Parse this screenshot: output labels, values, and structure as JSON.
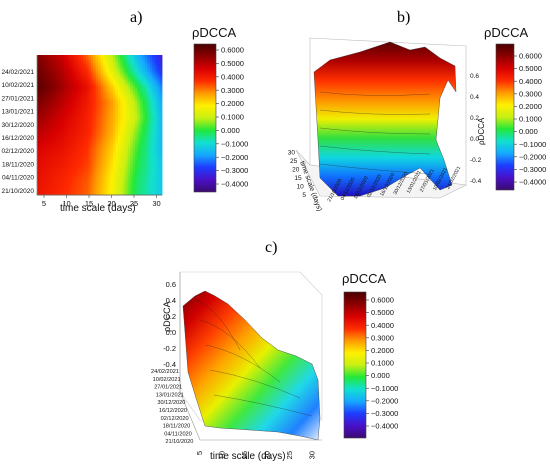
{
  "chart_data": [
    {
      "panel": "a)",
      "type": "heatmap",
      "xlabel": "time scale (days)",
      "x_ticks": [
        "5",
        "10",
        "15",
        "20",
        "25",
        "30"
      ],
      "date_ticks": [
        "24/02/2021",
        "10/02/2021",
        "27/01/2021",
        "13/01/2021",
        "30/12/2020",
        "16/12/2020",
        "02/12/2020",
        "18/11/2020",
        "04/11/2020",
        "21/10/2020"
      ],
      "colorbar_title": "ρDCCA",
      "colorbar_ticks": [
        "0.6000",
        "0.5000",
        "0.4000",
        "0.3000",
        "0.2000",
        "0.1000",
        "0.000",
        "−0.1000",
        "−0.2000",
        "−0.3000",
        "−0.4000"
      ],
      "zlim": [
        -0.45,
        0.65
      ],
      "grid": {
        "x": [
          5,
          10,
          15,
          20,
          25,
          30
        ],
        "dates": [
          "21/10/2020",
          "04/11/2020",
          "18/11/2020",
          "02/12/2020",
          "16/12/2020",
          "30/12/2020",
          "13/01/2021",
          "27/01/2021",
          "10/02/2021",
          "24/02/2021"
        ],
        "values": [
          [
            0.42,
            0.38,
            0.33,
            0.18,
            -0.02,
            -0.12
          ],
          [
            0.43,
            0.39,
            0.34,
            0.19,
            -0.01,
            -0.12
          ],
          [
            0.44,
            0.41,
            0.36,
            0.21,
            0.01,
            -0.12
          ],
          [
            0.46,
            0.43,
            0.37,
            0.23,
            0.03,
            -0.14
          ],
          [
            0.5,
            0.45,
            0.39,
            0.26,
            0.06,
            -0.14
          ],
          [
            0.54,
            0.47,
            0.4,
            0.27,
            0.1,
            -0.14
          ],
          [
            0.58,
            0.5,
            0.41,
            0.28,
            0.08,
            -0.16
          ],
          [
            0.63,
            0.53,
            0.43,
            0.23,
            0.02,
            -0.2
          ],
          [
            0.6,
            0.51,
            0.38,
            0.15,
            -0.08,
            -0.28
          ],
          [
            0.57,
            0.48,
            0.33,
            0.1,
            -0.14,
            -0.32
          ]
        ]
      }
    },
    {
      "panel": "b)",
      "type": "surface3d",
      "xlabel": "time scale (days)",
      "zlabel": "ρDCCA",
      "x_ticks": [
        "5",
        "10",
        "15",
        "20",
        "25",
        "30"
      ],
      "z_ticks": [
        "0.6",
        "0.4",
        "0.2",
        "0.0",
        "-0.2",
        "-0.4"
      ],
      "date_ticks": [
        "21/10/2020",
        "04/11/2020",
        "18/11/2020",
        "02/12/2020",
        "16/12/2020",
        "30/12/2020",
        "13/01/2021",
        "27/01/2021",
        "10/02/2021",
        "24/02/2021"
      ],
      "colorbar_title": "ρDCCA",
      "colorbar_ticks": [
        "0.6000",
        "0.5000",
        "0.4000",
        "0.3000",
        "0.2000",
        "0.1000",
        "0.000",
        "−0.1000",
        "−0.2000",
        "−0.3000",
        "−0.4000"
      ]
    },
    {
      "panel": "c)",
      "type": "surface3d",
      "xlabel": "time scale (days)",
      "zlabel": "ρDCCA",
      "x_ticks": [
        "5",
        "10",
        "15",
        "20",
        "25",
        "30"
      ],
      "z_ticks": [
        "0.6",
        "0.4",
        "0.2",
        "0.0",
        "-0.2",
        "-0.4"
      ],
      "date_ticks": [
        "24/02/2021",
        "10/02/2021",
        "27/01/2021",
        "13/01/2021",
        "30/12/2020",
        "16/12/2020",
        "02/12/2020",
        "18/11/2020",
        "04/11/2020",
        "21/10/2020"
      ],
      "colorbar_title": "ρDCCA",
      "colorbar_ticks": [
        "0.6000",
        "0.5000",
        "0.4000",
        "0.3000",
        "0.2000",
        "0.1000",
        "0.000",
        "−0.1000",
        "−0.2000",
        "−0.3000",
        "−0.4000"
      ]
    }
  ],
  "colormap": [
    "#3a0a6e",
    "#4a10c8",
    "#1e3cff",
    "#15a8ff",
    "#12e0d0",
    "#22e83a",
    "#c8f012",
    "#fff000",
    "#ff9a00",
    "#ff2a00",
    "#d80000",
    "#8c0000",
    "#4a0000"
  ]
}
